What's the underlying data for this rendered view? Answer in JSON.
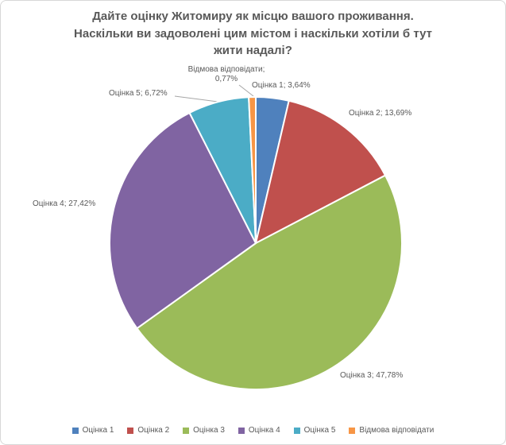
{
  "window": {
    "background": "#FFFFFF",
    "border_color": "#D7D7D7",
    "text_color": "#595959",
    "leader_line_color": "#A6A6A6"
  },
  "chart_data": {
    "type": "pie",
    "title": "Дайте оцінку Житомиру як місцю вашого проживання. Наскільки ви задоволені цим містом і наскільки хотіли б тут жити надалі?",
    "title_lines": [
      "Дайте оцінку Житомиру як місцю вашого проживання.",
      "Наскільки ви задоволені цим містом і наскільки хотіли б тут",
      "жити надалі?"
    ],
    "categories": [
      "Оцінка 1",
      "Оцінка 2",
      "Оцінка 3",
      "Оцінка 4",
      "Оцінка 5",
      "Відмова відповідати"
    ],
    "values": [
      3.64,
      13.69,
      47.78,
      27.42,
      6.72,
      0.77
    ],
    "data_labels": [
      "Оцінка 1; 3,64%",
      "Оцінка 2; 13,69%",
      "Оцінка 3; 47,78%",
      "Оцінка 4; 27,42%",
      "Оцінка 5; 6,72%",
      "Відмова відповідати;\n0,77%"
    ],
    "colors": [
      "#4F81BD",
      "#C0504D",
      "#9BBB59",
      "#8064A2",
      "#4BACC6",
      "#F79646"
    ],
    "slice_border_color": "#FFFFFF",
    "start_angle_deg": 0,
    "direction": "clockwise",
    "legend_position": "bottom"
  }
}
